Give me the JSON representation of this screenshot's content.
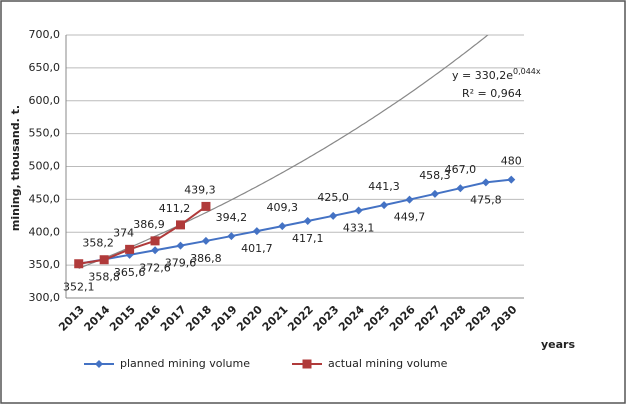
{
  "chart_data": {
    "type": "line",
    "y_label": "mining, thousand. t.",
    "x_label": "years",
    "categories": [
      "2013",
      "2014",
      "2015",
      "2016",
      "2017",
      "2018",
      "2019",
      "2020",
      "2021",
      "2022",
      "2023",
      "2024",
      "2025",
      "2026",
      "2027",
      "2028",
      "2029",
      "2030"
    ],
    "series": [
      {
        "name": "planned mining volume",
        "color": "#4472c4",
        "marker": "diamond",
        "values": [
          352.1,
          358.8,
          365.6,
          372.6,
          379.6,
          386.8,
          394.2,
          401.7,
          409.3,
          417.1,
          425.0,
          433.1,
          441.3,
          449.7,
          458.3,
          467.0,
          475.8,
          480
        ],
        "value_labels": [
          "352,1",
          "358,8",
          "365,6",
          "372,6",
          "379,6",
          "386,8",
          "394,2",
          "401,7",
          "409,3",
          "417,1",
          "425,0",
          "433,1",
          "441,3",
          "449,7",
          "458,3",
          "467,0",
          "475,8",
          "480"
        ]
      },
      {
        "name": "actual mining volume",
        "color": "#b03a3a",
        "marker": "square",
        "values": [
          352.1,
          358.2,
          374,
          386.9,
          411.2,
          439.3,
          null,
          null,
          null,
          null,
          null,
          null,
          null,
          null,
          null,
          null,
          null,
          null
        ],
        "value_labels": [
          null,
          "358,2",
          "374",
          "386,9",
          "411,2",
          "439,3",
          null,
          null,
          null,
          null,
          null,
          null,
          null,
          null,
          null,
          null,
          null,
          null
        ]
      }
    ],
    "trendline": {
      "a": 330.2,
      "b": 0.044,
      "equation": "y = 330,2e",
      "exponent": "0,044x",
      "r2": "R² = 0,964",
      "color": "#888888"
    },
    "ylim": [
      300,
      700
    ],
    "yticks": [
      {
        "value": 300,
        "label": "300,0"
      },
      {
        "value": 350,
        "label": "350,0"
      },
      {
        "value": 400,
        "label": "400,0"
      },
      {
        "value": 450,
        "label": "450,0"
      },
      {
        "value": 500,
        "label": "500,0"
      },
      {
        "value": 550,
        "label": "550,0"
      },
      {
        "value": 600,
        "label": "600,0"
      },
      {
        "value": 650,
        "label": "650,0"
      },
      {
        "value": 700,
        "label": "700,0"
      }
    ],
    "grid": true,
    "legend": "bottom"
  }
}
